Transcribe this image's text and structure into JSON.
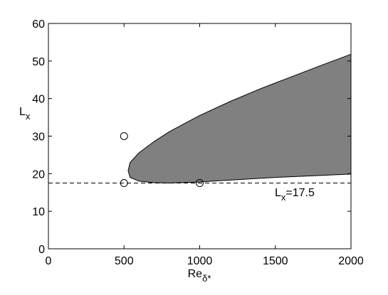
{
  "chart_data": {
    "type": "region",
    "xlabel": {
      "text": "Re",
      "sub": "δ*"
    },
    "ylabel": {
      "text": "L",
      "sub": "x"
    },
    "xlim": [
      0,
      2000
    ],
    "xticks": [
      0,
      500,
      1000,
      1500,
      2000
    ],
    "ylim": [
      0,
      60
    ],
    "yticks": [
      0,
      10,
      20,
      30,
      40,
      50,
      60
    ],
    "region": {
      "color": "#808080",
      "x": [
        527,
        540,
        600,
        700,
        800,
        1000,
        1200,
        1400,
        1600,
        1800,
        2000,
        2000,
        1500,
        1200,
        1000,
        800,
        700,
        600,
        540
      ],
      "y": [
        20.8,
        23,
        25.6,
        28.6,
        31.2,
        35.5,
        39.2,
        42.6,
        45.7,
        48.8,
        51.8,
        19.9,
        19,
        18.3,
        17.8,
        17.5,
        17.6,
        18,
        19
      ]
    },
    "points": {
      "x": [
        500,
        500,
        1000
      ],
      "y": [
        30,
        17.5,
        17.5
      ]
    },
    "hline": {
      "y": 17.5,
      "style": "dashed"
    },
    "annotation": {
      "text": "L",
      "sub": "x",
      "rest": "=17.5"
    }
  }
}
